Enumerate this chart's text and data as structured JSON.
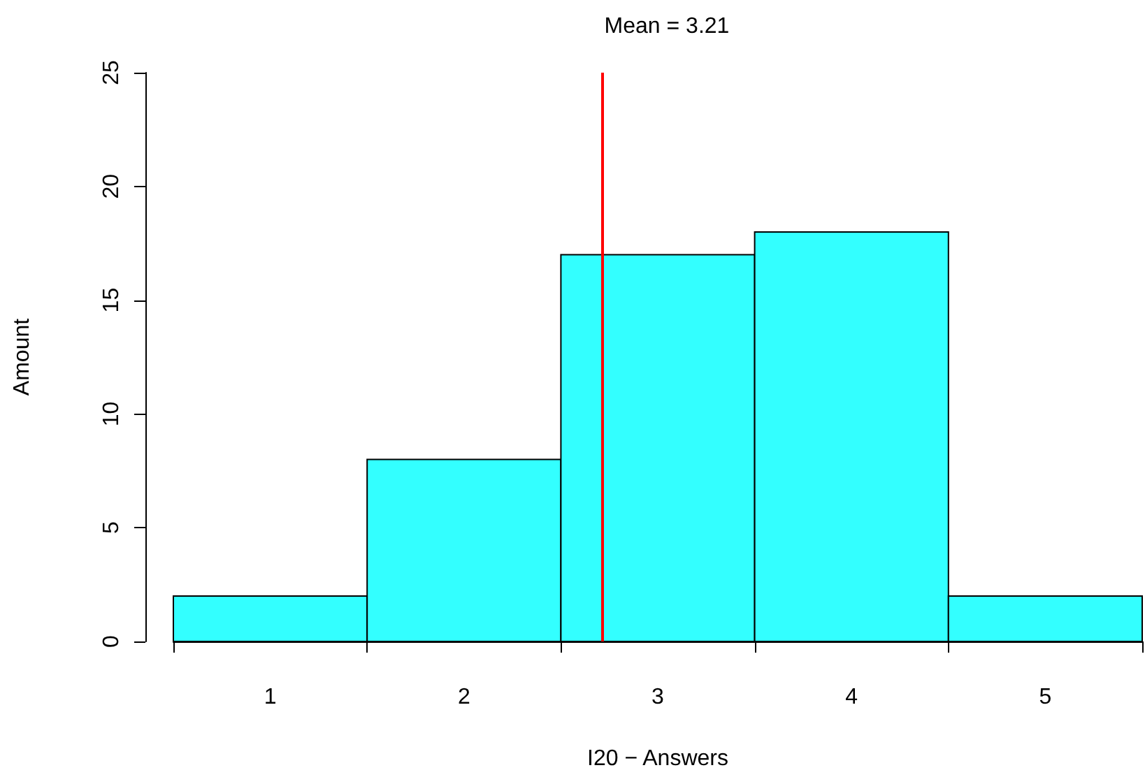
{
  "chart_data": {
    "type": "histogram",
    "title": "Mean = 3.21",
    "xlabel": "I20 − Answers",
    "ylabel": "Amount",
    "bins": [
      1,
      2,
      3,
      4,
      5,
      6
    ],
    "values": [
      2,
      8,
      17,
      18,
      2
    ],
    "color": "#33ffff",
    "xlim": [
      1,
      6
    ],
    "xticks": [
      {
        "value": 1,
        "label": null
      },
      {
        "value": 2,
        "label": null
      },
      {
        "value": 3,
        "label": null
      },
      {
        "value": 4,
        "label": null
      },
      {
        "value": 5,
        "label": null
      },
      {
        "value": 6,
        "label": null
      },
      {
        "value": 1.5,
        "label": "1"
      },
      {
        "value": 2.5,
        "label": "2"
      },
      {
        "value": 3.5,
        "label": "3"
      },
      {
        "value": 4.5,
        "label": "4"
      },
      {
        "value": 5.5,
        "label": "5"
      }
    ],
    "ylim": [
      0,
      25
    ],
    "yticks": [
      0,
      5,
      10,
      15,
      20,
      25
    ],
    "grid": false,
    "ref_lines": [
      {
        "axis": "x",
        "value": 3.21,
        "color": "#ff0000"
      }
    ]
  }
}
